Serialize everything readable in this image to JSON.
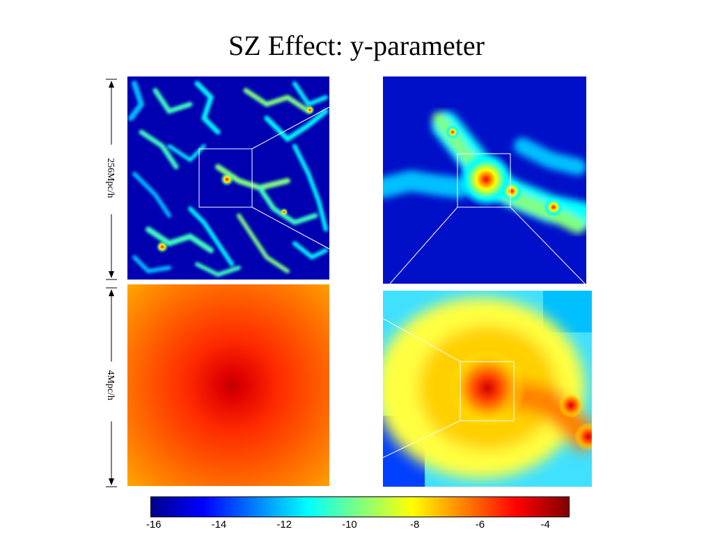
{
  "title": "SZ Effect: y-parameter",
  "scale_labels": {
    "top": "256Mpc/h",
    "bottom": "4Mpc/h"
  },
  "colorbar": {
    "ticks": [
      "-16",
      "-14",
      "-12",
      "-10",
      "-8",
      "-6",
      "-4"
    ],
    "colors": [
      "#00008f",
      "#0000ff",
      "#0080ff",
      "#00ffff",
      "#80ff80",
      "#ffff00",
      "#ff8000",
      "#ff0000",
      "#800000"
    ]
  },
  "panels": [
    {
      "name": "large-scale-map"
    },
    {
      "name": "zoom-1-map"
    },
    {
      "name": "zoom-2-map"
    },
    {
      "name": "cluster-core-map"
    }
  ]
}
